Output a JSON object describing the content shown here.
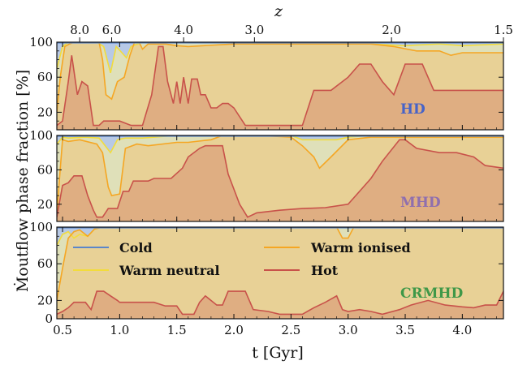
{
  "chart_data": {
    "type": "area",
    "xlabel": "t [Gyr]",
    "ylabel": "Ṁoutflow phase fraction [%]",
    "top_axis_label": "z",
    "xlim": [
      0.45,
      4.36
    ],
    "ylim": [
      0,
      100
    ],
    "x_ticks": [
      "0.5",
      "1.0",
      "1.5",
      "2.0",
      "2.5",
      "3.0",
      "3.5",
      "4.0"
    ],
    "z_ticks": [
      {
        "label": "8.0",
        "t": 0.65
      },
      {
        "label": "6.0",
        "t": 0.93
      },
      {
        "label": "4.0",
        "t": 1.56
      },
      {
        "label": "3.0",
        "t": 2.18
      },
      {
        "label": "2.0",
        "t": 3.38
      },
      {
        "label": "1.5",
        "t": 4.36
      }
    ],
    "legend": {
      "entries": [
        {
          "name": "Cold",
          "color": "#5b86c9"
        },
        {
          "name": "Warm neutral",
          "color": "#f2dc3c"
        },
        {
          "name": "Warm ionised",
          "color": "#f5a623"
        },
        {
          "name": "Hot",
          "color": "#c8524a"
        }
      ]
    },
    "fill_colors": {
      "cold": "#b7c9e6",
      "warm_neutral": "#dfe0b9",
      "warm_ionised": "#e8d196",
      "hot": "#dfae82"
    },
    "panels": [
      {
        "tag": "HD",
        "tag_color": "#4663c8",
        "yticks": [
          20,
          60,
          100
        ],
        "hot": [
          [
            0.45,
            5
          ],
          [
            0.5,
            10
          ],
          [
            0.55,
            55
          ],
          [
            0.58,
            85
          ],
          [
            0.63,
            40
          ],
          [
            0.67,
            55
          ],
          [
            0.72,
            50
          ],
          [
            0.77,
            5
          ],
          [
            0.82,
            5
          ],
          [
            0.86,
            10
          ],
          [
            1.0,
            10
          ],
          [
            1.1,
            5
          ],
          [
            1.2,
            5
          ],
          [
            1.28,
            40
          ],
          [
            1.34,
            95
          ],
          [
            1.38,
            95
          ],
          [
            1.42,
            55
          ],
          [
            1.47,
            30
          ],
          [
            1.5,
            55
          ],
          [
            1.53,
            30
          ],
          [
            1.56,
            60
          ],
          [
            1.6,
            30
          ],
          [
            1.63,
            58
          ],
          [
            1.68,
            58
          ],
          [
            1.71,
            40
          ],
          [
            1.75,
            40
          ],
          [
            1.8,
            25
          ],
          [
            1.85,
            25
          ],
          [
            1.9,
            30
          ],
          [
            1.95,
            30
          ],
          [
            2.0,
            25
          ],
          [
            2.1,
            5
          ],
          [
            2.6,
            5
          ],
          [
            2.7,
            45
          ],
          [
            2.85,
            45
          ],
          [
            3.0,
            60
          ],
          [
            3.1,
            75
          ],
          [
            3.2,
            75
          ],
          [
            3.3,
            55
          ],
          [
            3.4,
            40
          ],
          [
            3.5,
            75
          ],
          [
            3.65,
            75
          ],
          [
            3.75,
            45
          ],
          [
            4.36,
            45
          ]
        ],
        "warm_ionised": [
          [
            0.45,
            20
          ],
          [
            0.48,
            60
          ],
          [
            0.52,
            95
          ],
          [
            0.56,
            98
          ],
          [
            0.6,
            100
          ],
          [
            0.82,
            100
          ],
          [
            0.85,
            80
          ],
          [
            0.88,
            40
          ],
          [
            0.93,
            35
          ],
          [
            0.98,
            55
          ],
          [
            1.04,
            60
          ],
          [
            1.09,
            85
          ],
          [
            1.13,
            100
          ],
          [
            1.17,
            100
          ],
          [
            1.2,
            92
          ],
          [
            1.25,
            98
          ],
          [
            1.4,
            98
          ],
          [
            1.5,
            96
          ],
          [
            1.6,
            95
          ],
          [
            2.0,
            98
          ],
          [
            2.6,
            98
          ],
          [
            3.0,
            98
          ],
          [
            3.2,
            98
          ],
          [
            3.4,
            95
          ],
          [
            3.6,
            90
          ],
          [
            3.8,
            90
          ],
          [
            3.9,
            85
          ],
          [
            4.0,
            88
          ],
          [
            4.36,
            88
          ]
        ],
        "warm_neutral": [
          [
            0.45,
            70
          ],
          [
            0.5,
            95
          ],
          [
            0.55,
            100
          ],
          [
            0.8,
            100
          ],
          [
            0.86,
            95
          ],
          [
            0.92,
            65
          ],
          [
            0.97,
            95
          ],
          [
            1.02,
            88
          ],
          [
            1.06,
            82
          ],
          [
            1.1,
            95
          ],
          [
            1.2,
            100
          ],
          [
            3.1,
            100
          ],
          [
            3.2,
            98
          ],
          [
            3.5,
            96
          ],
          [
            3.8,
            98
          ],
          [
            4.0,
            96
          ],
          [
            4.36,
            98
          ]
        ]
      },
      {
        "tag": "MHD",
        "tag_color": "#8f6fae",
        "yticks": [
          20,
          60,
          100
        ],
        "hot": [
          [
            0.45,
            5
          ],
          [
            0.5,
            42
          ],
          [
            0.55,
            45
          ],
          [
            0.6,
            53
          ],
          [
            0.67,
            53
          ],
          [
            0.72,
            30
          ],
          [
            0.77,
            13
          ],
          [
            0.8,
            5
          ],
          [
            0.85,
            5
          ],
          [
            0.9,
            15
          ],
          [
            0.98,
            15
          ],
          [
            1.03,
            35
          ],
          [
            1.08,
            35
          ],
          [
            1.12,
            47
          ],
          [
            1.25,
            47
          ],
          [
            1.3,
            50
          ],
          [
            1.45,
            50
          ],
          [
            1.55,
            62
          ],
          [
            1.6,
            75
          ],
          [
            1.7,
            85
          ],
          [
            1.75,
            88
          ],
          [
            1.9,
            88
          ],
          [
            1.95,
            55
          ],
          [
            2.05,
            20
          ],
          [
            2.12,
            5
          ],
          [
            2.2,
            10
          ],
          [
            2.4,
            13
          ],
          [
            2.6,
            15
          ],
          [
            2.8,
            16
          ],
          [
            3.0,
            20
          ],
          [
            3.1,
            35
          ],
          [
            3.2,
            50
          ],
          [
            3.3,
            70
          ],
          [
            3.45,
            95
          ],
          [
            3.5,
            95
          ],
          [
            3.6,
            85
          ],
          [
            3.8,
            80
          ],
          [
            3.95,
            80
          ],
          [
            4.1,
            75
          ],
          [
            4.2,
            65
          ],
          [
            4.36,
            62
          ]
        ],
        "warm_ionised": [
          [
            0.45,
            10
          ],
          [
            0.5,
            95
          ],
          [
            0.55,
            93
          ],
          [
            0.65,
            95
          ],
          [
            0.8,
            90
          ],
          [
            0.85,
            80
          ],
          [
            0.9,
            40
          ],
          [
            0.93,
            30
          ],
          [
            1.0,
            32
          ],
          [
            1.05,
            85
          ],
          [
            1.15,
            90
          ],
          [
            1.25,
            88
          ],
          [
            1.5,
            92
          ],
          [
            1.6,
            92
          ],
          [
            1.8,
            95
          ],
          [
            1.9,
            100
          ],
          [
            2.0,
            100
          ],
          [
            2.2,
            100
          ],
          [
            2.5,
            98
          ],
          [
            2.6,
            88
          ],
          [
            2.7,
            75
          ],
          [
            2.75,
            62
          ],
          [
            2.85,
            75
          ],
          [
            3.0,
            95
          ],
          [
            3.2,
            98
          ],
          [
            3.5,
            98
          ],
          [
            4.0,
            98
          ],
          [
            4.36,
            98
          ]
        ],
        "warm_neutral": [
          [
            0.45,
            90
          ],
          [
            0.5,
            98
          ],
          [
            0.55,
            97
          ],
          [
            0.7,
            98
          ],
          [
            0.82,
            97
          ],
          [
            0.85,
            92
          ],
          [
            0.92,
            80
          ],
          [
            0.98,
            95
          ],
          [
            1.05,
            97
          ],
          [
            1.2,
            97
          ],
          [
            1.5,
            100
          ],
          [
            2.2,
            100
          ],
          [
            2.4,
            100
          ],
          [
            2.5,
            100
          ],
          [
            2.6,
            95
          ],
          [
            2.9,
            95
          ],
          [
            3.0,
            98
          ],
          [
            3.2,
            100
          ],
          [
            4.36,
            100
          ]
        ]
      },
      {
        "tag": "CRMHD",
        "tag_color": "#3f9848",
        "yticks": [
          0,
          20,
          60,
          100
        ],
        "hot": [
          [
            0.45,
            5
          ],
          [
            0.5,
            8
          ],
          [
            0.55,
            12
          ],
          [
            0.6,
            18
          ],
          [
            0.7,
            18
          ],
          [
            0.75,
            10
          ],
          [
            0.8,
            30
          ],
          [
            0.86,
            30
          ],
          [
            0.92,
            25
          ],
          [
            0.98,
            20
          ],
          [
            1.0,
            18
          ],
          [
            1.1,
            18
          ],
          [
            1.2,
            18
          ],
          [
            1.3,
            18
          ],
          [
            1.4,
            14
          ],
          [
            1.45,
            14
          ],
          [
            1.5,
            14
          ],
          [
            1.55,
            5
          ],
          [
            1.65,
            5
          ],
          [
            1.7,
            18
          ],
          [
            1.75,
            25
          ],
          [
            1.85,
            15
          ],
          [
            1.9,
            15
          ],
          [
            1.95,
            30
          ],
          [
            2.1,
            30
          ],
          [
            2.17,
            10
          ],
          [
            2.3,
            8
          ],
          [
            2.4,
            5
          ],
          [
            2.6,
            5
          ],
          [
            2.7,
            12
          ],
          [
            2.8,
            18
          ],
          [
            2.9,
            25
          ],
          [
            2.95,
            10
          ],
          [
            3.0,
            8
          ],
          [
            3.1,
            10
          ],
          [
            3.2,
            8
          ],
          [
            3.3,
            5
          ],
          [
            3.45,
            10
          ],
          [
            3.55,
            15
          ],
          [
            3.7,
            20
          ],
          [
            3.85,
            15
          ],
          [
            4.0,
            13
          ],
          [
            4.1,
            12
          ],
          [
            4.2,
            15
          ],
          [
            4.3,
            15
          ],
          [
            4.36,
            30
          ]
        ],
        "warm_ionised": [
          [
            0.45,
            20
          ],
          [
            0.5,
            55
          ],
          [
            0.55,
            88
          ],
          [
            0.6,
            95
          ],
          [
            0.65,
            97
          ],
          [
            0.72,
            90
          ],
          [
            0.78,
            98
          ],
          [
            0.85,
            100
          ],
          [
            0.9,
            100
          ],
          [
            0.95,
            100
          ],
          [
            1.0,
            100
          ],
          [
            1.2,
            100
          ],
          [
            2.0,
            100
          ],
          [
            2.5,
            100
          ],
          [
            2.9,
            100
          ],
          [
            2.95,
            88
          ],
          [
            3.0,
            88
          ],
          [
            3.05,
            100
          ],
          [
            3.3,
            100
          ],
          [
            4.36,
            100
          ]
        ],
        "warm_neutral": [
          [
            0.45,
            80
          ],
          [
            0.5,
            92
          ],
          [
            0.55,
            95
          ],
          [
            0.6,
            88
          ],
          [
            0.65,
            92
          ],
          [
            0.72,
            90
          ],
          [
            0.78,
            98
          ],
          [
            0.85,
            100
          ],
          [
            1.2,
            100
          ],
          [
            4.36,
            100
          ]
        ]
      }
    ]
  }
}
